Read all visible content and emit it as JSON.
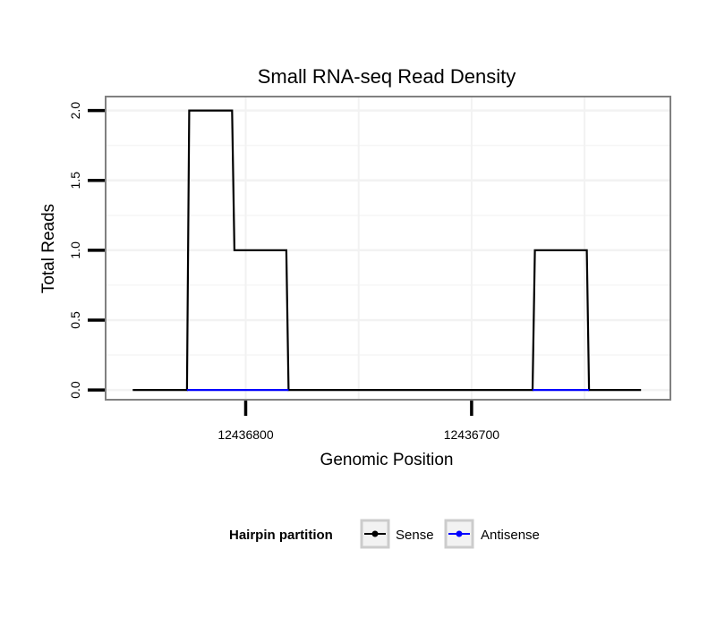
{
  "chart_data": {
    "type": "line",
    "title": "Small RNA-seq Read Density",
    "xlabel": "Genomic Position",
    "ylabel": "Total Reads",
    "x_reversed": true,
    "xlim": [
      12436862,
      12436612
    ],
    "ylim": [
      -0.07,
      2.1
    ],
    "x_ticks": [
      12436800,
      12436700
    ],
    "x_tick_labels": [
      "12436800",
      "12436700"
    ],
    "y_ticks": [
      0,
      0.5,
      1,
      1.5,
      2
    ],
    "y_tick_labels": [
      "0.0",
      "0.5",
      "1.0",
      "1.5",
      "2.0"
    ],
    "grid": true,
    "legend": {
      "title": "Hairpin partition",
      "position": "bottom",
      "entries": [
        {
          "name": "Sense",
          "color": "#000000"
        },
        {
          "name": "Antisense",
          "color": "#0000ff"
        }
      ]
    },
    "series": [
      {
        "name": "Sense",
        "color": "#000000",
        "x": [
          12436850,
          12436826,
          12436825,
          12436806,
          12436805,
          12436782,
          12436781,
          12436673,
          12436672,
          12436649,
          12436648,
          12436625
        ],
        "values": [
          0,
          0,
          2,
          2,
          1,
          1,
          0,
          0,
          1,
          1,
          0,
          0
        ]
      },
      {
        "name": "Antisense",
        "color": "#0000ff",
        "segments": [
          {
            "x": [
              12436826,
              12436781
            ],
            "values": [
              0,
              0
            ]
          },
          {
            "x": [
              12436673,
              12436648
            ],
            "values": [
              0,
              0
            ]
          }
        ]
      }
    ]
  }
}
